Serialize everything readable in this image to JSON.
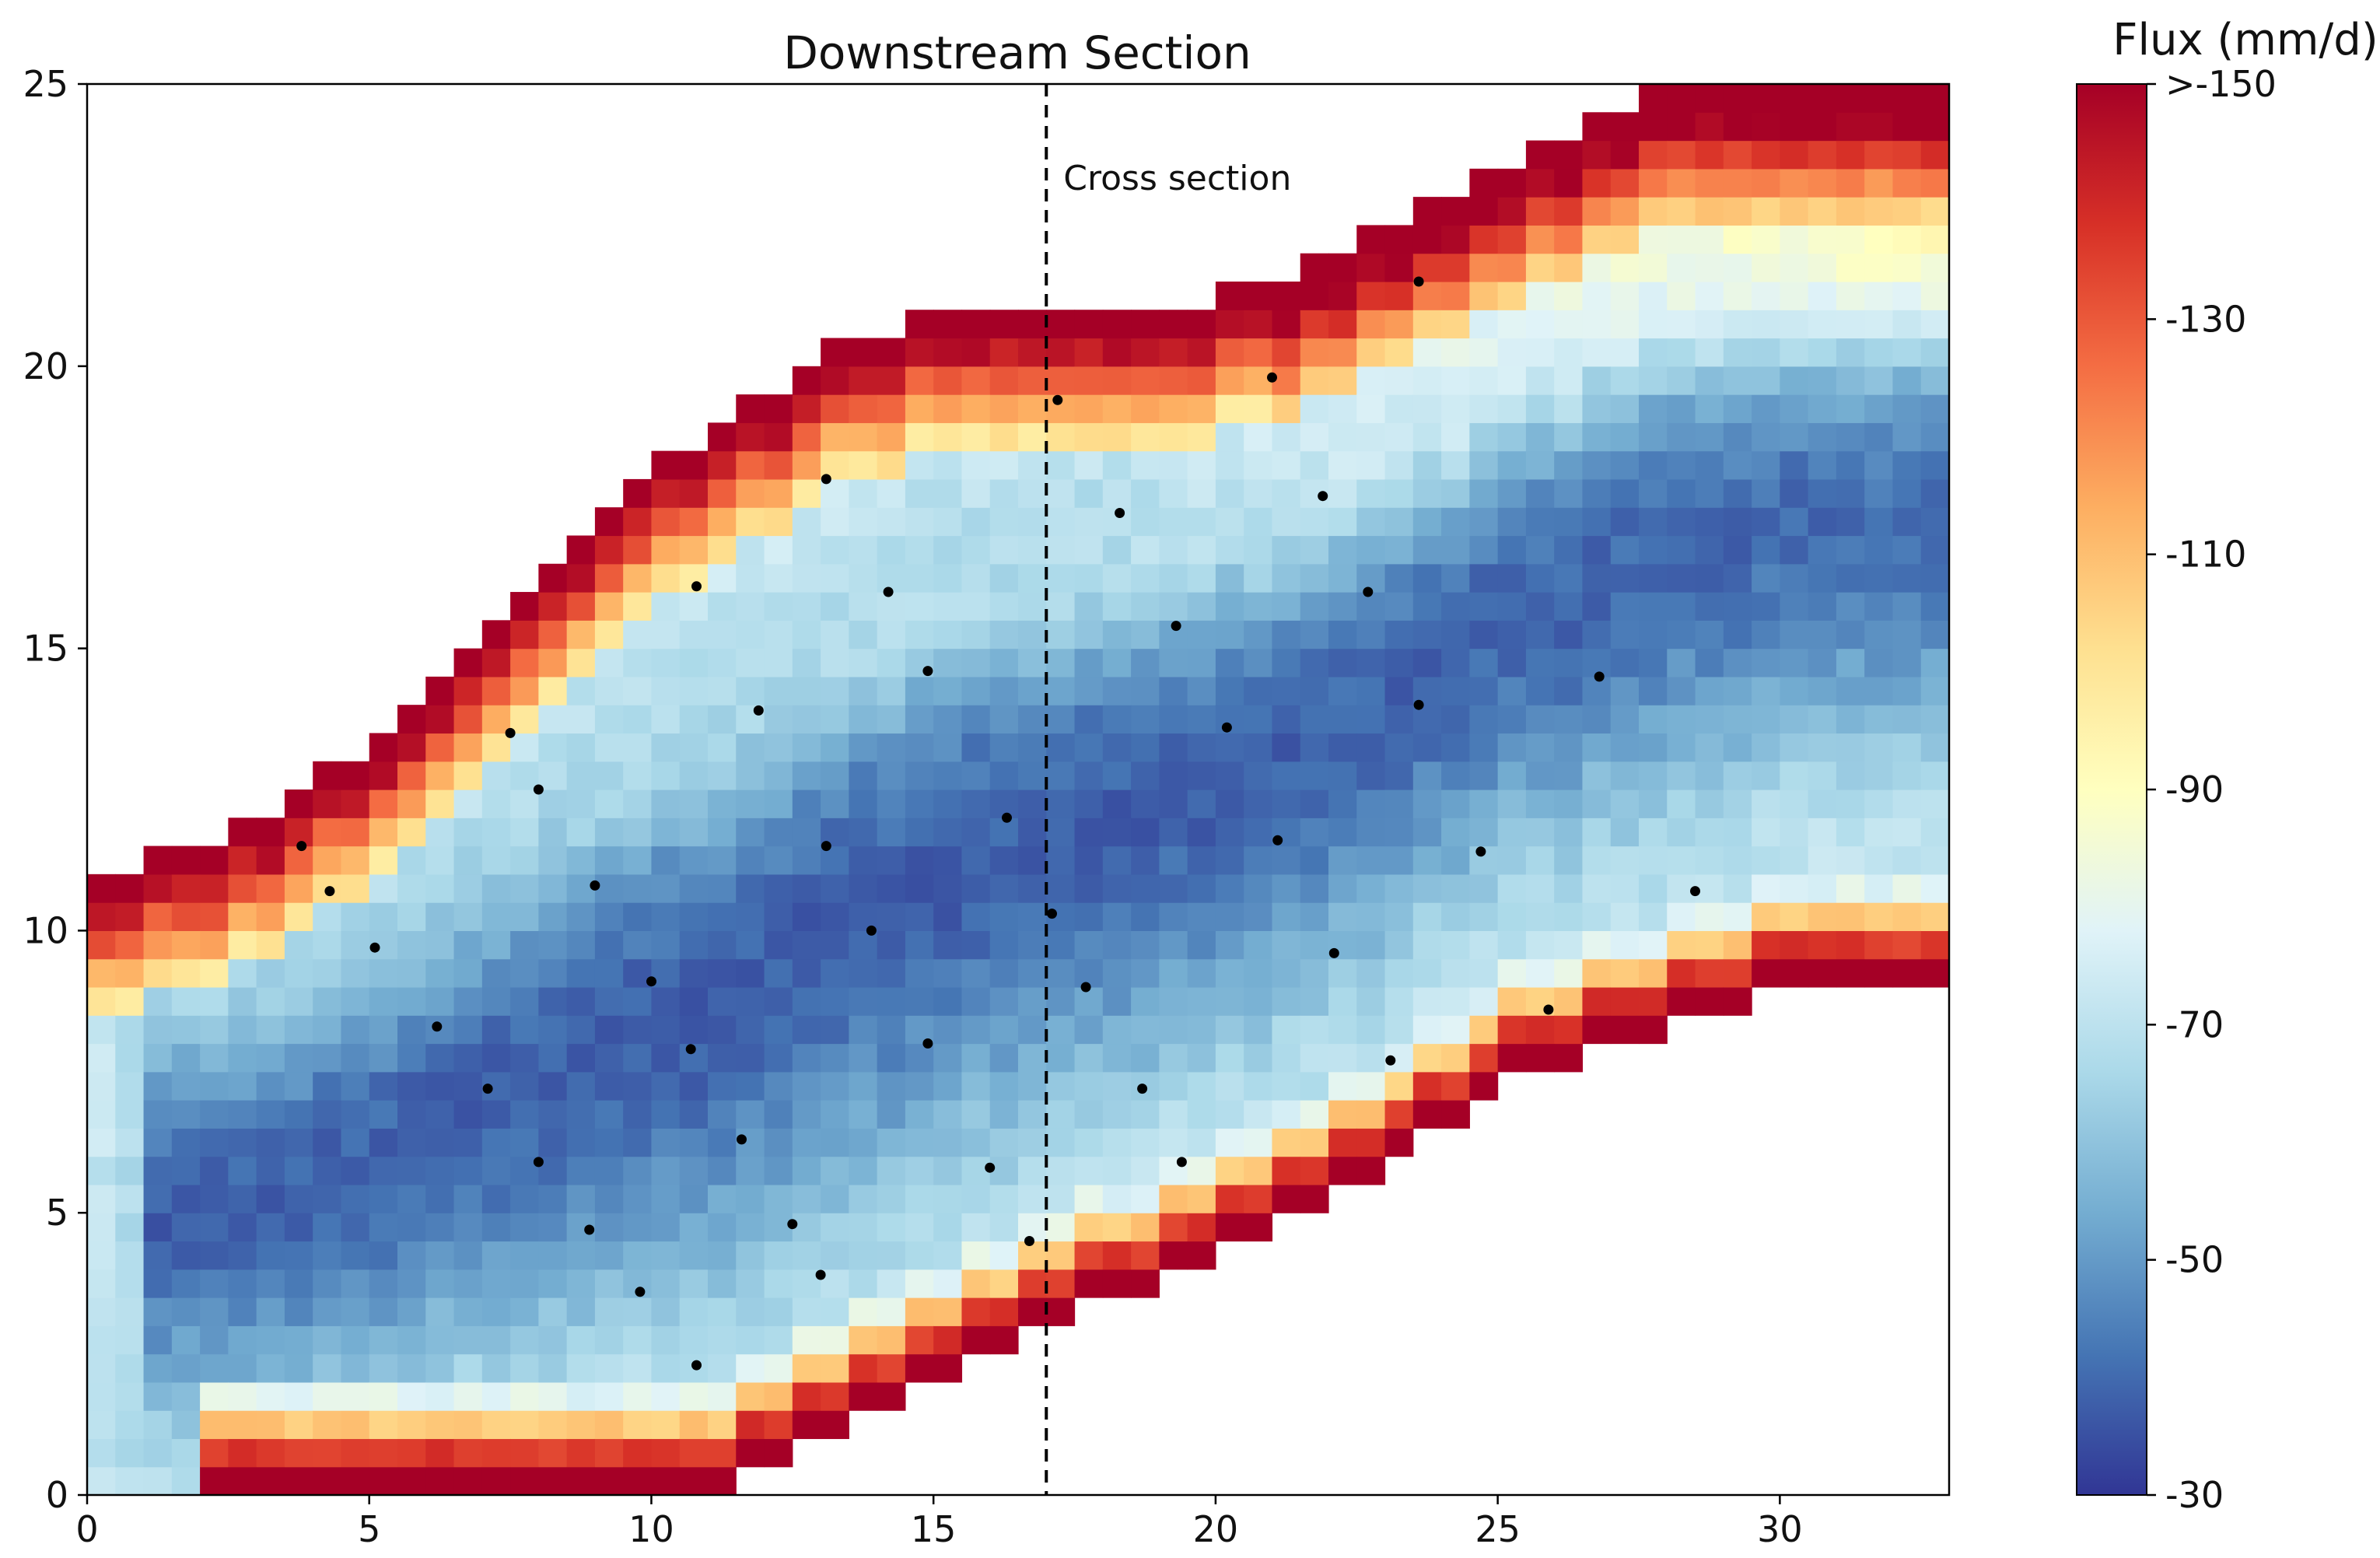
{
  "chart_data": {
    "type": "heatmap",
    "title": "Downstream Section",
    "xlabel": "",
    "ylabel": "",
    "xlim": [
      0,
      33
    ],
    "ylim": [
      0,
      25
    ],
    "x_ticks": [
      0,
      5,
      10,
      15,
      20,
      25,
      30
    ],
    "y_ticks": [
      0,
      5,
      10,
      15,
      20,
      25
    ],
    "cell_size": 0.5,
    "colorbar": {
      "label": "Flux (mm/d)",
      "range": [
        -150,
        -30
      ],
      "ticks": [
        {
          "value": -150,
          "label": ">-150"
        },
        {
          "value": -130,
          "label": "-130"
        },
        {
          "value": -110,
          "label": "-110"
        },
        {
          "value": -90,
          "label": "-90"
        },
        {
          "value": -70,
          "label": "-70"
        },
        {
          "value": -50,
          "label": "-50"
        },
        {
          "value": -30,
          "label": "-30"
        }
      ],
      "colormap": "RdYlBu",
      "colormap_stops": [
        "#a50026",
        "#d73027",
        "#f46d43",
        "#fdae61",
        "#fee090",
        "#ffffbf",
        "#e0f3f8",
        "#abd9e9",
        "#74add1",
        "#4575b4",
        "#313695"
      ]
    },
    "domain": {
      "upper_boundary": [
        [
          0,
          11
        ],
        [
          2,
          11.4
        ],
        [
          4,
          12.6
        ],
        [
          6,
          14
        ],
        [
          8,
          16
        ],
        [
          10,
          18.2
        ],
        [
          13,
          20.2
        ],
        [
          15,
          21
        ],
        [
          17,
          21
        ],
        [
          19,
          21
        ],
        [
          21,
          21.6
        ],
        [
          23,
          22.6
        ],
        [
          25,
          23.6
        ],
        [
          27,
          24.6
        ],
        [
          29,
          25
        ],
        [
          33,
          25
        ]
      ],
      "lower_boundary": [
        [
          0,
          0
        ],
        [
          11,
          0
        ],
        [
          13,
          1
        ],
        [
          15,
          2
        ],
        [
          17,
          3
        ],
        [
          19,
          3.8
        ],
        [
          21,
          4.8
        ],
        [
          23,
          5.8
        ],
        [
          25,
          7.2
        ],
        [
          27,
          8
        ],
        [
          29,
          8.6
        ],
        [
          31,
          9
        ],
        [
          33,
          9
        ]
      ]
    },
    "cross_section": {
      "x": 17,
      "label": "Cross section"
    },
    "points": [
      [
        3.8,
        11.5
      ],
      [
        4.3,
        10.7
      ],
      [
        5.1,
        9.7
      ],
      [
        6.2,
        8.3
      ],
      [
        7.1,
        7.2
      ],
      [
        7.5,
        13.5
      ],
      [
        8,
        12.5
      ],
      [
        8,
        5.9
      ],
      [
        8.9,
        4.7
      ],
      [
        9,
        10.8
      ],
      [
        9.8,
        3.6
      ],
      [
        10,
        9.1
      ],
      [
        10.7,
        7.9
      ],
      [
        10.8,
        16.1
      ],
      [
        10.8,
        2.3
      ],
      [
        11.6,
        6.3
      ],
      [
        11.9,
        13.9
      ],
      [
        12.5,
        4.8
      ],
      [
        13,
        3.9
      ],
      [
        13.1,
        18
      ],
      [
        13.1,
        11.5
      ],
      [
        13.9,
        10
      ],
      [
        14.2,
        16
      ],
      [
        14.9,
        8
      ],
      [
        14.9,
        14.6
      ],
      [
        16,
        5.8
      ],
      [
        16.3,
        12
      ],
      [
        16.7,
        4.5
      ],
      [
        17.1,
        10.3
      ],
      [
        17.2,
        19.4
      ],
      [
        17.7,
        9
      ],
      [
        18.3,
        17.4
      ],
      [
        18.7,
        7.2
      ],
      [
        19.3,
        15.4
      ],
      [
        19.4,
        5.9
      ],
      [
        20.2,
        13.6
      ],
      [
        21,
        19.8
      ],
      [
        21.1,
        11.6
      ],
      [
        21.9,
        17.7
      ],
      [
        22.1,
        9.6
      ],
      [
        22.7,
        16
      ],
      [
        23.1,
        7.7
      ],
      [
        23.6,
        21.5
      ],
      [
        23.6,
        14
      ],
      [
        24.7,
        11.4
      ],
      [
        25.9,
        8.6
      ],
      [
        26.8,
        14.5
      ],
      [
        28.5,
        10.7
      ]
    ]
  }
}
